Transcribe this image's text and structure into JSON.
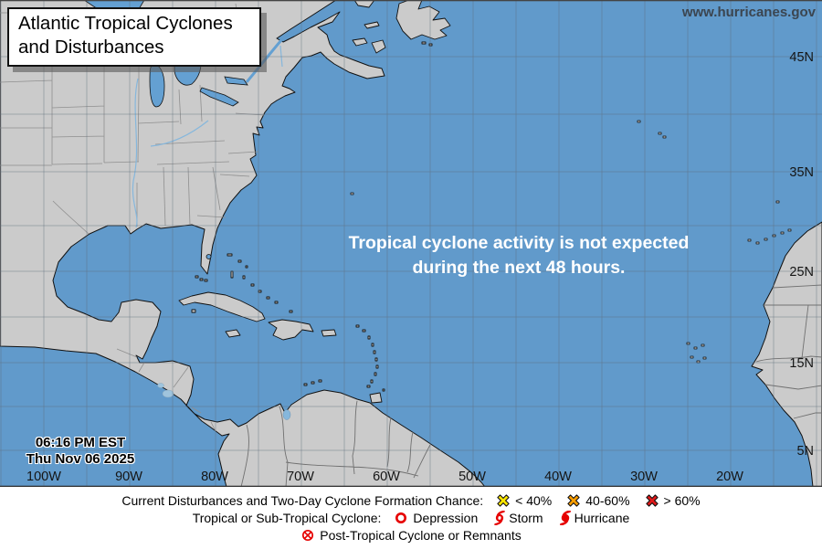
{
  "header": {
    "title": "Atlantic Tropical Cyclones and Disturbances",
    "website": "www.hurricanes.gov"
  },
  "map": {
    "message": {
      "line1": "Tropical cyclone activity is not expected",
      "line2": "during the next 48 hours."
    },
    "timestamp": {
      "time": "06:16 PM EST",
      "date": "Thu Nov 06 2025"
    },
    "lat_labels": [
      "45N",
      "35N",
      "25N",
      "15N",
      "5N"
    ],
    "lon_labels": [
      "100W",
      "90W",
      "80W",
      "70W",
      "60W",
      "50W",
      "40W",
      "30W",
      "20W"
    ],
    "colors": {
      "ocean": "#619ACB",
      "land": "#CBCBCB",
      "coastline": "#111111",
      "lake": "#64A0D2",
      "grid": "rgba(95,110,125,0.42)"
    }
  },
  "legend": {
    "accent_red": "#E60000",
    "formation": {
      "label": "Current Disturbances and Two-Day Cyclone Formation Chance:",
      "items": [
        {
          "icon": "x-icon",
          "color": "#FFE600",
          "label": "< 40%"
        },
        {
          "icon": "x-icon",
          "color": "#FF9E00",
          "label": "40-60%"
        },
        {
          "icon": "x-icon",
          "color": "#E01A1A",
          "label": "> 60%"
        }
      ]
    },
    "cyclone": {
      "label": "Tropical or Sub-Tropical Cyclone:",
      "items": [
        {
          "icon": "depression-icon",
          "label": "Depression"
        },
        {
          "icon": "storm-icon",
          "label": "Storm"
        },
        {
          "icon": "hurricane-icon",
          "label": "Hurricane"
        }
      ]
    },
    "post_tropical": {
      "items": [
        {
          "icon": "post-tropical-icon",
          "label": "Post-Tropical Cyclone or Remnants"
        }
      ]
    }
  }
}
